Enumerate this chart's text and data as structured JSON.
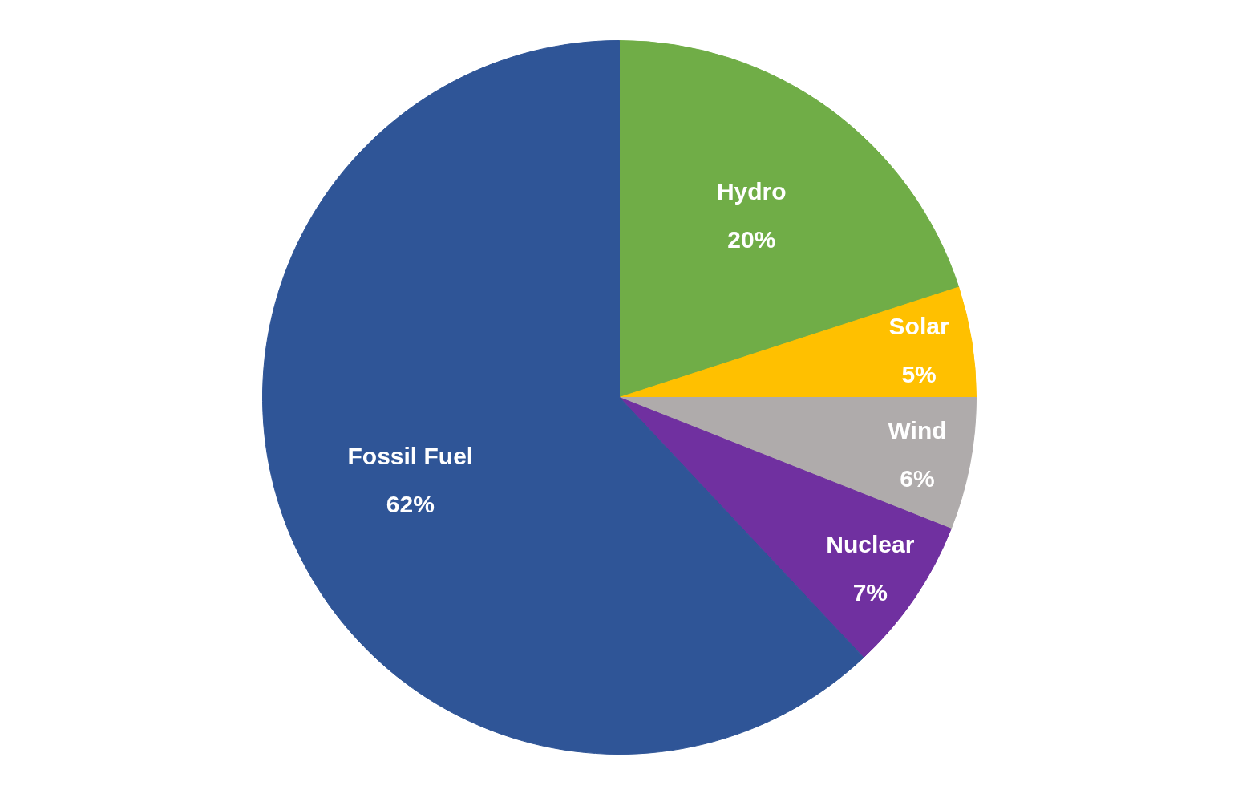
{
  "chart_data": {
    "type": "pie",
    "categories": [
      "Hydro",
      "Solar",
      "Wind",
      "Nuclear",
      "Fossil Fuel"
    ],
    "values": [
      20,
      5,
      6,
      7,
      62
    ],
    "value_labels": [
      "20%",
      "5%",
      "6%",
      "7%",
      "62%"
    ],
    "colors": [
      "#70ad47",
      "#ffc000",
      "#afabab",
      "#7030a0",
      "#2f5597"
    ]
  }
}
